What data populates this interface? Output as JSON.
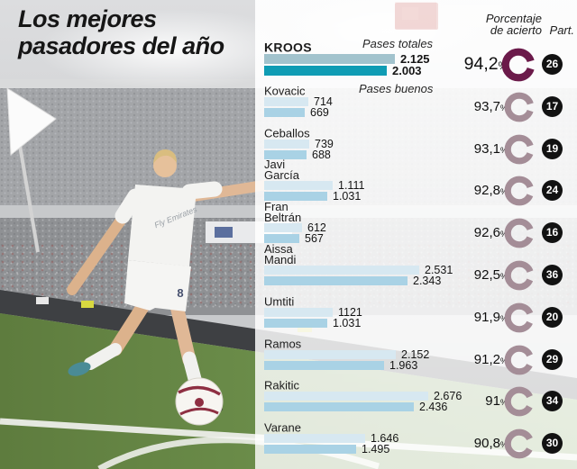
{
  "title": {
    "line1": "Los mejores",
    "line2": "pasadores del año"
  },
  "columns": {
    "porcentaje_line1": "Porcentaje",
    "porcentaje_line2": "de acierto",
    "part": "Part."
  },
  "legend": {
    "totales": "Pases totales",
    "buenos": "Pases buenos"
  },
  "ui": {
    "percent_sign": "%"
  },
  "photo": {
    "jersey_sponsor": "Fly Emirates",
    "jersey_number": "8"
  },
  "colors": {
    "bar_total": "#d7e8f1",
    "bar_buenos": "#a9d2e5",
    "kroos_bar_total": "#a2c3cd",
    "kroos_bar_buenos": "#0f9cb4",
    "ring": "#a48d97",
    "ring_highlight": "#6b1a4a",
    "badge_bg": "#121212",
    "badge_text": "#ffffff",
    "accent_red": "#c2453f",
    "grass": "#6b8a49"
  },
  "chart_data": {
    "type": "bar",
    "orientation": "horizontal",
    "title": "Los mejores pasadores del año",
    "series": [
      "Pases totales",
      "Pases buenos"
    ],
    "extra_columns": [
      "Porcentaje de acierto",
      "Part."
    ],
    "value_labels_shown": true,
    "players": [
      {
        "name_lines": [
          "KROOS"
        ],
        "totales": 2125,
        "buenos": 2003,
        "totales_label": "2.125",
        "buenos_label": "2.003",
        "pct": 94.2,
        "pct_label": "94,2",
        "part": 26,
        "highlight": true
      },
      {
        "name_lines": [
          "Kovacic"
        ],
        "totales": 714,
        "buenos": 669,
        "totales_label": "714",
        "buenos_label": "669",
        "pct": 93.7,
        "pct_label": "93,7",
        "part": 17,
        "highlight": false
      },
      {
        "name_lines": [
          "Ceballos"
        ],
        "totales": 739,
        "buenos": 688,
        "totales_label": "739",
        "buenos_label": "688",
        "pct": 93.1,
        "pct_label": "93,1",
        "part": 19,
        "highlight": false
      },
      {
        "name_lines": [
          "Javi",
          "García"
        ],
        "totales": 1111,
        "buenos": 1031,
        "totales_label": "1.111",
        "buenos_label": "1.031",
        "pct": 92.8,
        "pct_label": "92,8",
        "part": 24,
        "highlight": false
      },
      {
        "name_lines": [
          "Fran",
          "Beltrán"
        ],
        "totales": 612,
        "buenos": 567,
        "totales_label": "612",
        "buenos_label": "567",
        "pct": 92.6,
        "pct_label": "92,6",
        "part": 16,
        "highlight": false
      },
      {
        "name_lines": [
          "Aissa",
          "Mandi"
        ],
        "totales": 2531,
        "buenos": 2343,
        "totales_label": "2.531",
        "buenos_label": "2.343",
        "pct": 92.5,
        "pct_label": "92,5",
        "part": 36,
        "highlight": false
      },
      {
        "name_lines": [
          "Umtiti"
        ],
        "totales": 1121,
        "buenos": 1031,
        "totales_label": "1121",
        "buenos_label": "1.031",
        "pct": 91.9,
        "pct_label": "91,9",
        "part": 20,
        "highlight": false
      },
      {
        "name_lines": [
          "Ramos"
        ],
        "totales": 2152,
        "buenos": 1963,
        "totales_label": "2.152",
        "buenos_label": "1.963",
        "pct": 91.2,
        "pct_label": "91,2",
        "part": 29,
        "highlight": false
      },
      {
        "name_lines": [
          "Rakitic"
        ],
        "totales": 2676,
        "buenos": 2436,
        "totales_label": "2.676",
        "buenos_label": "2.436",
        "pct": 91.0,
        "pct_label": "91",
        "part": 34,
        "highlight": false
      },
      {
        "name_lines": [
          "Varane"
        ],
        "totales": 1646,
        "buenos": 1495,
        "totales_label": "1.646",
        "buenos_label": "1.495",
        "pct": 90.8,
        "pct_label": "90,8",
        "part": 30,
        "highlight": false
      }
    ]
  }
}
